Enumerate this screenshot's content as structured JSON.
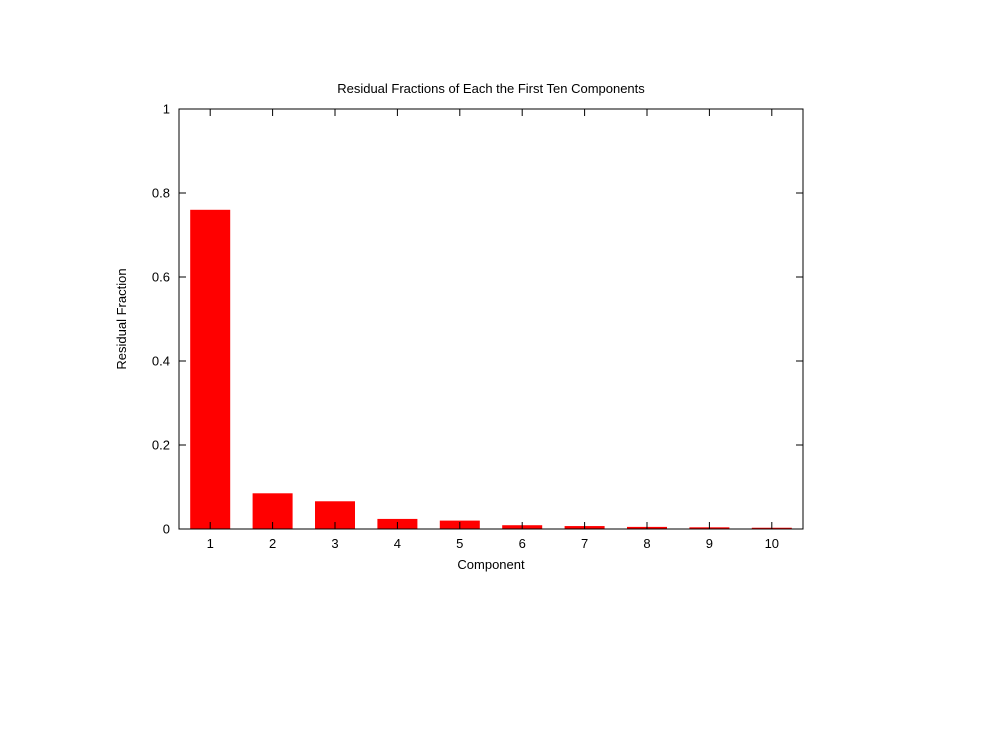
{
  "chart_data": {
    "type": "bar",
    "title": "Residual Fractions of Each the First Ten Components",
    "xlabel": "Component",
    "ylabel": "Residual Fraction",
    "categories": [
      "1",
      "2",
      "3",
      "4",
      "5",
      "6",
      "7",
      "8",
      "9",
      "10"
    ],
    "values": [
      0.76,
      0.085,
      0.066,
      0.024,
      0.02,
      0.009,
      0.007,
      0.005,
      0.004,
      0.003
    ],
    "ylim": [
      0,
      1
    ],
    "yticks": [
      "0",
      "0.2",
      "0.4",
      "0.6",
      "0.8",
      "1"
    ],
    "grid": false,
    "legend": "none",
    "bar_color": "#ff0000"
  }
}
